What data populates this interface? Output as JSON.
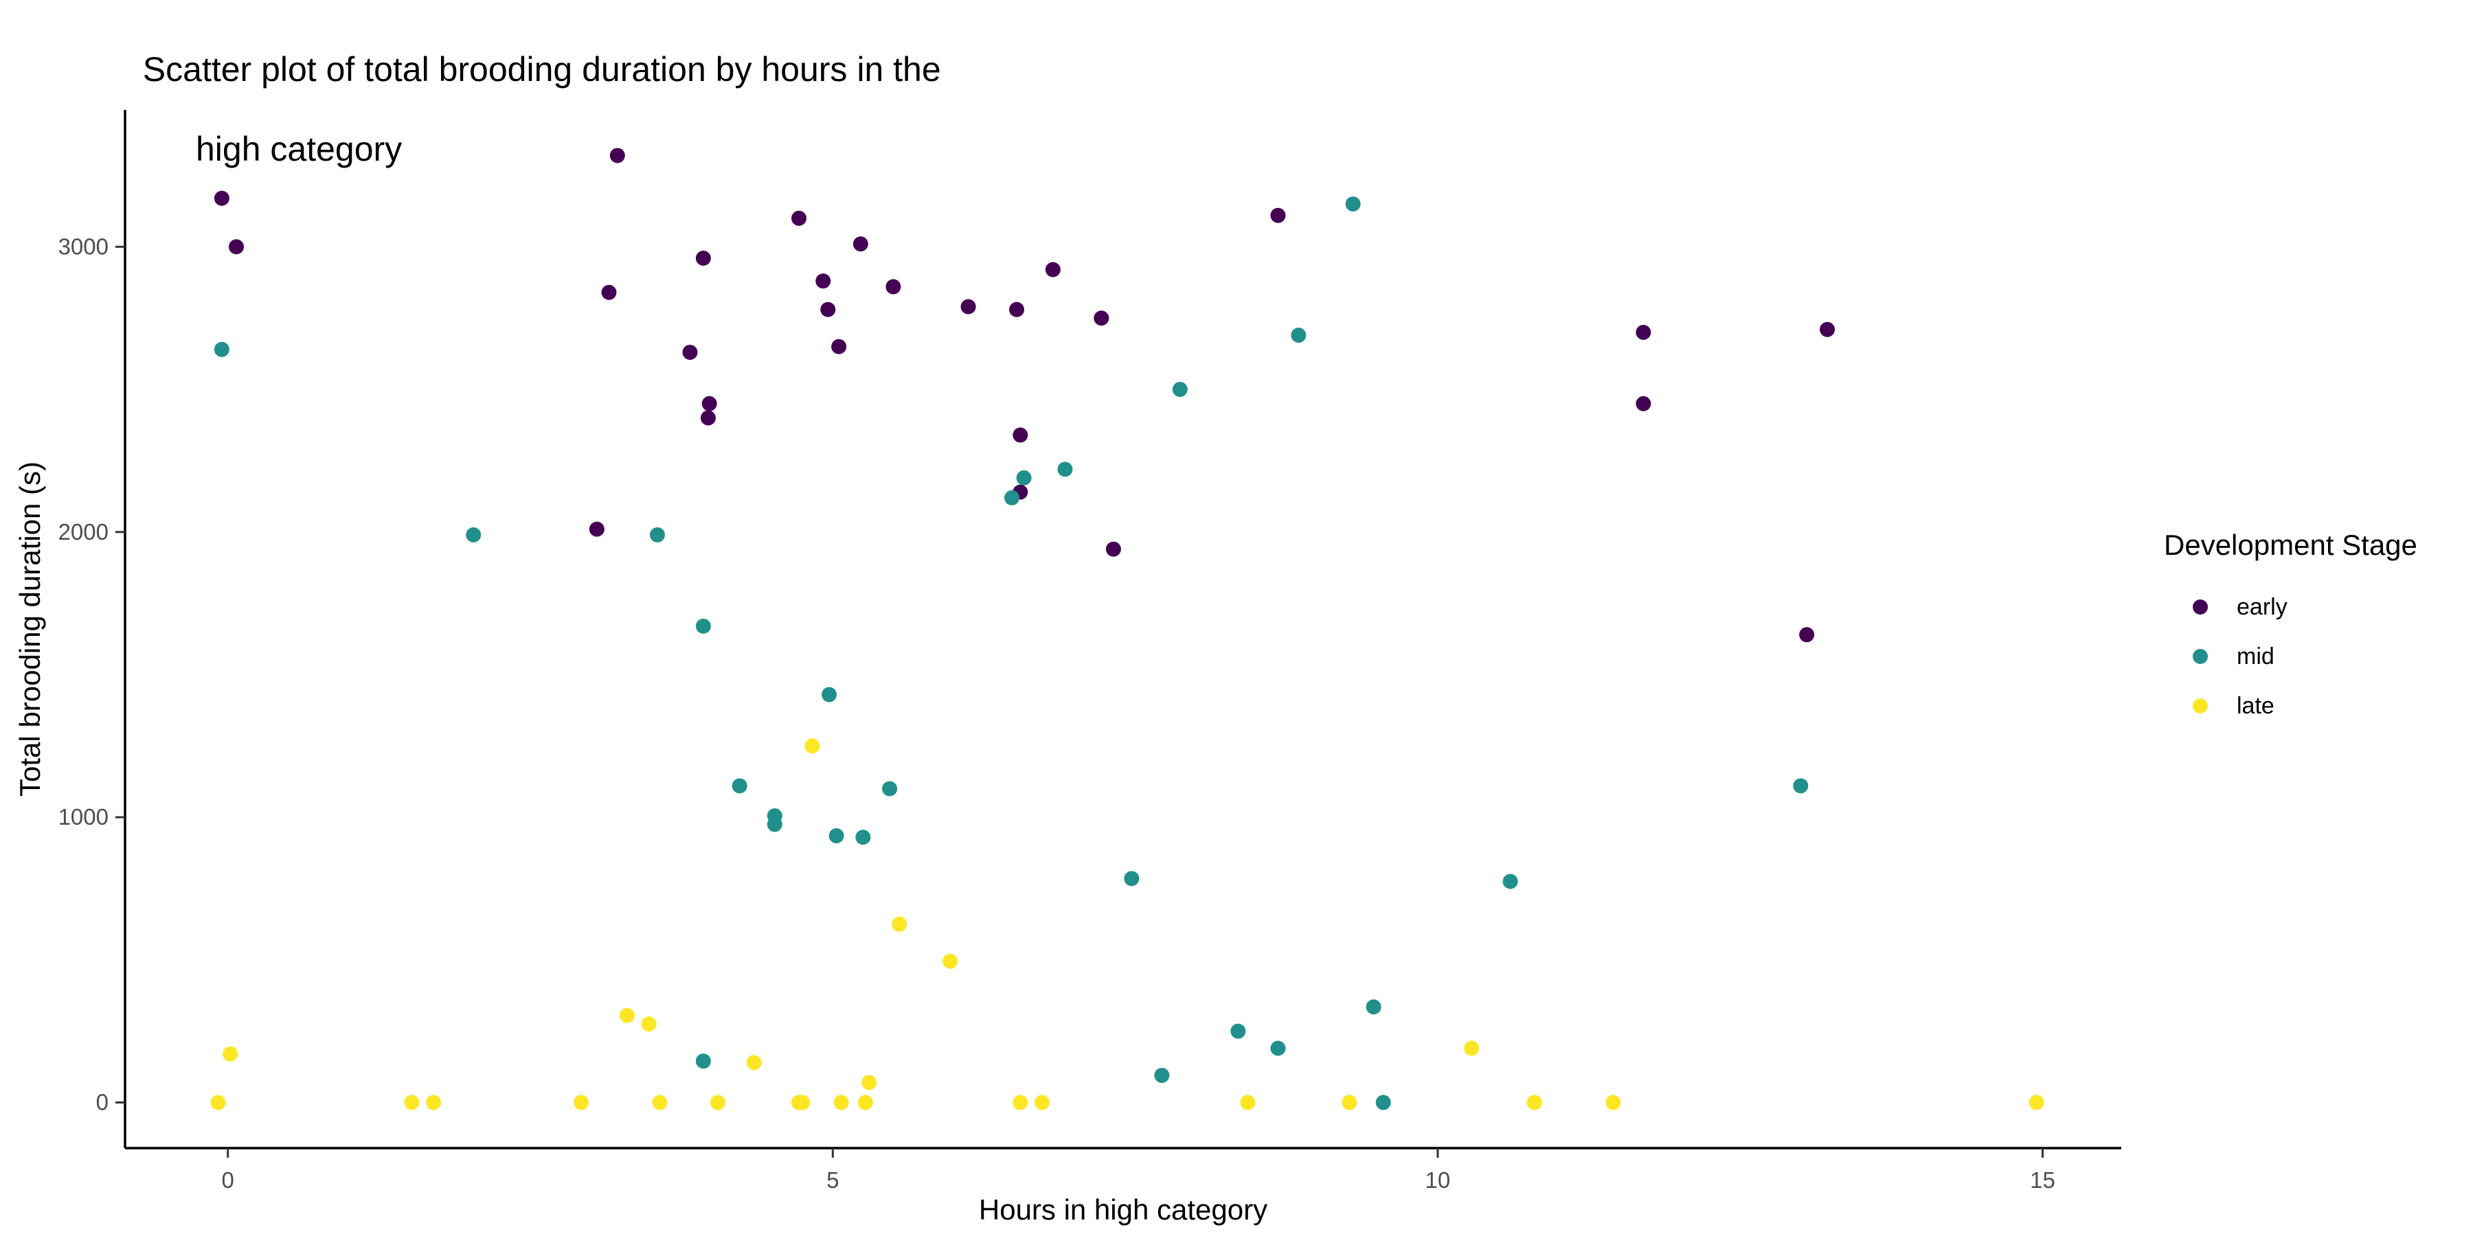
{
  "chart_data": {
    "type": "scatter",
    "title": "Scatter plot of total brooding duration by hours in the high category",
    "title_lines": [
      "Scatter plot of total brooding duration by hours in the",
      "high category"
    ],
    "xlabel": "Hours in high category",
    "ylabel": "Total brooding duration (s)",
    "xlim": [
      -0.85,
      15.65
    ],
    "ylim": [
      -160,
      3480
    ],
    "xticks": [
      0,
      5,
      10,
      15
    ],
    "yticks": [
      0,
      1000,
      2000,
      3000
    ],
    "grid": false,
    "legend": {
      "title": "Development Stage",
      "position": "right"
    },
    "series": [
      {
        "name": "early",
        "color": "#440154",
        "points": [
          [
            -0.05,
            3170
          ],
          [
            0.07,
            3000
          ],
          [
            3.05,
            2010
          ],
          [
            3.15,
            2840
          ],
          [
            3.22,
            3320
          ],
          [
            3.82,
            2630
          ],
          [
            3.93,
            2960
          ],
          [
            3.97,
            2400
          ],
          [
            3.98,
            2450
          ],
          [
            4.72,
            3100
          ],
          [
            4.92,
            2880
          ],
          [
            4.96,
            2780
          ],
          [
            5.05,
            2650
          ],
          [
            5.23,
            3010
          ],
          [
            5.5,
            2860
          ],
          [
            6.12,
            2790
          ],
          [
            6.52,
            2780
          ],
          [
            6.55,
            2340
          ],
          [
            6.55,
            2140
          ],
          [
            6.82,
            2920
          ],
          [
            7.22,
            2750
          ],
          [
            7.32,
            1940
          ],
          [
            8.68,
            3110
          ],
          [
            11.7,
            2700
          ],
          [
            11.7,
            2450
          ],
          [
            13.05,
            1640
          ],
          [
            13.22,
            2710
          ]
        ]
      },
      {
        "name": "mid",
        "color": "#21908C",
        "points": [
          [
            -0.05,
            2640
          ],
          [
            2.03,
            1990
          ],
          [
            3.55,
            1990
          ],
          [
            3.93,
            1670
          ],
          [
            3.93,
            145
          ],
          [
            4.23,
            1110
          ],
          [
            4.52,
            1005
          ],
          [
            4.52,
            975
          ],
          [
            4.97,
            1430
          ],
          [
            5.03,
            935
          ],
          [
            5.25,
            930
          ],
          [
            5.47,
            1100
          ],
          [
            6.48,
            2120
          ],
          [
            6.58,
            2190
          ],
          [
            6.92,
            2220
          ],
          [
            7.47,
            785
          ],
          [
            7.72,
            95
          ],
          [
            7.87,
            2500
          ],
          [
            8.35,
            250
          ],
          [
            8.68,
            190
          ],
          [
            8.85,
            2690
          ],
          [
            9.3,
            3150
          ],
          [
            9.47,
            335
          ],
          [
            9.55,
            0
          ],
          [
            10.6,
            775
          ],
          [
            13.0,
            1110
          ]
        ]
      },
      {
        "name": "late",
        "color": "#FDE725",
        "points": [
          [
            -0.08,
            0
          ],
          [
            0.02,
            170
          ],
          [
            1.52,
            0
          ],
          [
            1.7,
            0
          ],
          [
            2.92,
            0
          ],
          [
            3.3,
            305
          ],
          [
            3.48,
            275
          ],
          [
            3.57,
            0
          ],
          [
            4.05,
            0
          ],
          [
            4.35,
            140
          ],
          [
            4.72,
            0
          ],
          [
            4.75,
            0
          ],
          [
            4.83,
            1250
          ],
          [
            5.07,
            0
          ],
          [
            5.27,
            0
          ],
          [
            5.3,
            70
          ],
          [
            5.55,
            625
          ],
          [
            5.97,
            495
          ],
          [
            6.55,
            0
          ],
          [
            6.73,
            0
          ],
          [
            8.43,
            0
          ],
          [
            9.27,
            0
          ],
          [
            10.28,
            190
          ],
          [
            10.8,
            0
          ],
          [
            11.45,
            0
          ],
          [
            14.95,
            0
          ]
        ]
      }
    ]
  }
}
